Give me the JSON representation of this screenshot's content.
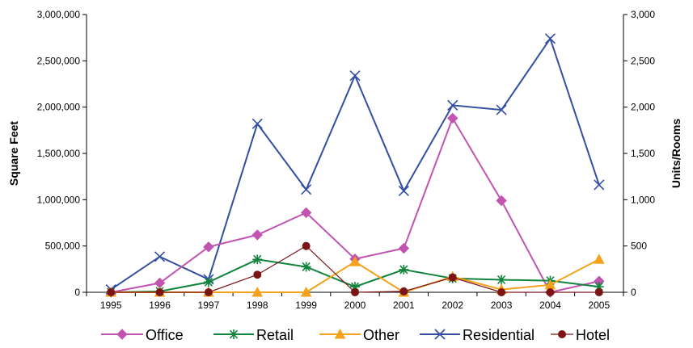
{
  "chart_data": {
    "type": "line",
    "title": "",
    "xlabel": "",
    "ylabel": "Square Feet",
    "y2label": "Units/Rooms",
    "categories": [
      "1995",
      "1996",
      "1997",
      "1998",
      "1999",
      "2000",
      "2001",
      "2002",
      "2003",
      "2004",
      "2005"
    ],
    "ylim": [
      0,
      3000000
    ],
    "y2lim": [
      0,
      3000
    ],
    "y_ticks": [
      "0",
      "500,000",
      "1,000,000",
      "1,500,000",
      "2,000,000",
      "2,500,000",
      "3,000,000"
    ],
    "y2_ticks": [
      "0",
      "500",
      "1,000",
      "1,500",
      "2,000",
      "2,500",
      "3,000"
    ],
    "grid": false,
    "legend_position": "bottom",
    "series": [
      {
        "name": "Office",
        "axis": "left",
        "color": "#c154b1",
        "marker": "diamond",
        "values": [
          0,
          100000,
          490000,
          620000,
          860000,
          360000,
          475000,
          1880000,
          990000,
          0,
          120000
        ]
      },
      {
        "name": "Retail",
        "axis": "left",
        "color": "#11843c",
        "marker": "asterisk",
        "values": [
          0,
          10000,
          110000,
          355000,
          275000,
          60000,
          245000,
          150000,
          135000,
          125000,
          60000
        ]
      },
      {
        "name": "Other",
        "axis": "left",
        "color": "#f5a11b",
        "marker": "triangle",
        "values": [
          0,
          0,
          0,
          0,
          0,
          330000,
          0,
          170000,
          30000,
          80000,
          355000
        ]
      },
      {
        "name": "Residential",
        "axis": "right",
        "color": "#334ea1",
        "marker": "x",
        "values": [
          30,
          385,
          140,
          1820,
          1110,
          2340,
          1095,
          2020,
          1970,
          2740,
          1160
        ]
      },
      {
        "name": "Hotel",
        "axis": "right",
        "color": "#7c1416",
        "marker": "circle",
        "values": [
          0,
          0,
          0,
          190,
          500,
          0,
          10,
          160,
          0,
          0,
          0
        ]
      }
    ]
  }
}
